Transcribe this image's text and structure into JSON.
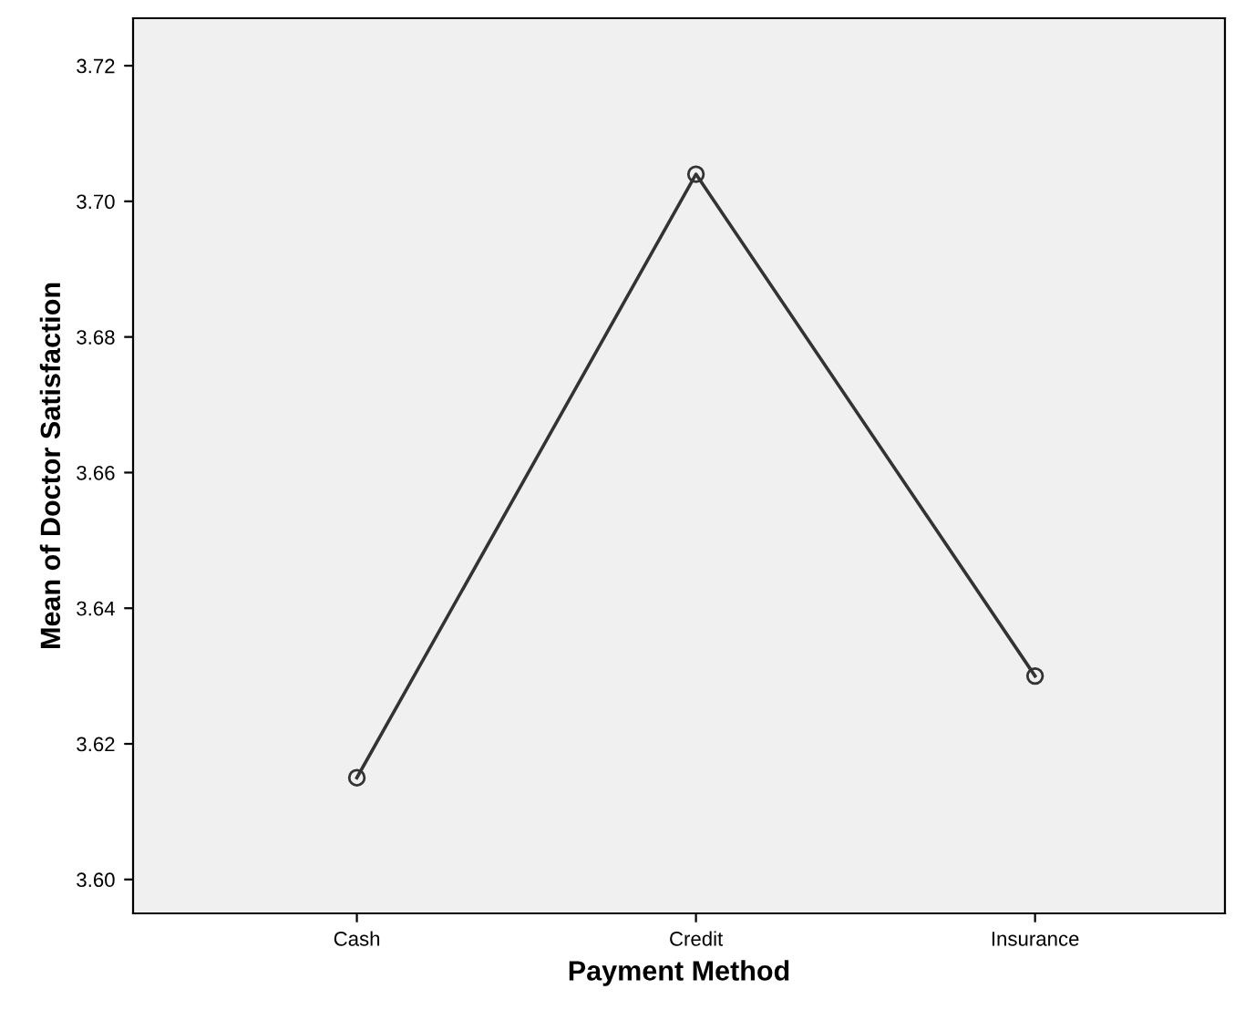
{
  "chart_data": {
    "type": "line",
    "xlabel": "Payment Method",
    "ylabel": "Mean of Doctor Satisfaction",
    "categories": [
      "Cash",
      "Credit",
      "Insurance"
    ],
    "series": [
      {
        "color": "#333333",
        "values": [
          3.615,
          3.704,
          3.63
        ]
      }
    ],
    "ylim": [
      3.595,
      3.727
    ],
    "yticks": [
      {
        "value": 3.6,
        "label": "3.60"
      },
      {
        "value": 3.62,
        "label": "3.62"
      },
      {
        "value": 3.64,
        "label": "3.64"
      },
      {
        "value": 3.66,
        "label": "3.66"
      },
      {
        "value": 3.68,
        "label": "3.68"
      },
      {
        "value": 3.7,
        "label": "3.70"
      },
      {
        "value": 3.72,
        "label": "3.72"
      }
    ],
    "marker": "circle",
    "line_style": "solid",
    "grid": false,
    "legend": false
  }
}
